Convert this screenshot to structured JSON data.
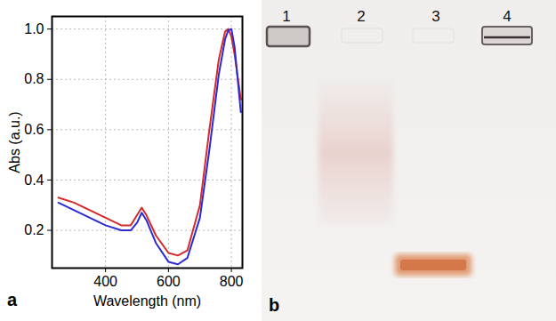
{
  "chart_data": {
    "type": "line",
    "title": "a",
    "x_label": "Wavelength (nm)",
    "y_label": "Abs (a.u.)",
    "x": [
      250,
      300,
      350,
      400,
      450,
      480,
      500,
      515,
      530,
      560,
      600,
      630,
      660,
      700,
      730,
      760,
      780,
      790,
      800,
      810,
      830
    ],
    "series": [
      {
        "color": "#d62a2a",
        "values": [
          0.33,
          0.31,
          0.28,
          0.25,
          0.22,
          0.22,
          0.26,
          0.29,
          0.26,
          0.18,
          0.11,
          0.1,
          0.12,
          0.3,
          0.6,
          0.88,
          0.99,
          1.0,
          0.97,
          0.9,
          0.72
        ]
      },
      {
        "color": "#2b2bd6",
        "values": [
          0.31,
          0.28,
          0.25,
          0.22,
          0.2,
          0.2,
          0.23,
          0.27,
          0.24,
          0.15,
          0.075,
          0.065,
          0.09,
          0.25,
          0.52,
          0.82,
          0.96,
          0.995,
          1.0,
          0.93,
          0.67
        ]
      }
    ],
    "xlim": [
      230,
      835
    ],
    "xticks": [
      400,
      600,
      800
    ],
    "ylim": [
      0.05,
      1.05
    ],
    "yticks": [
      0.2,
      0.4,
      0.6,
      0.8,
      {
        "value": 1,
        "label": "1.0"
      }
    ],
    "grid": true
  },
  "gel": {
    "panel_label": "b",
    "lanes": [
      "1",
      "2",
      "3",
      "4"
    ]
  }
}
